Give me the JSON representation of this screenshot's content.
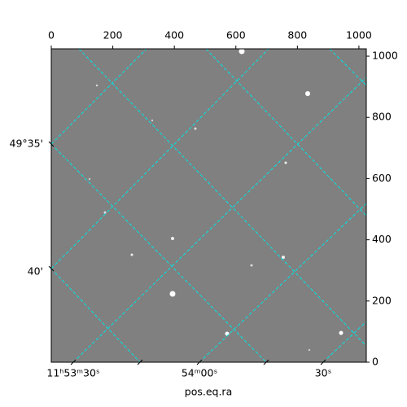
{
  "chart_data": {
    "type": "image",
    "xlabel": "pos.eq.ra",
    "xlim": [
      0,
      1024
    ],
    "ylim": [
      0,
      1024
    ],
    "xticks": [
      0,
      200,
      400,
      600,
      800,
      1000
    ],
    "yticks": [
      0,
      200,
      400,
      600,
      800,
      1000
    ],
    "ra_labels": [
      "11ʰ53ᵐ30ˢ",
      "54ᵐ00ˢ",
      "30ˢ"
    ],
    "dec_labels": [
      "49°35'",
      "40'"
    ],
    "background": "#808080"
  }
}
